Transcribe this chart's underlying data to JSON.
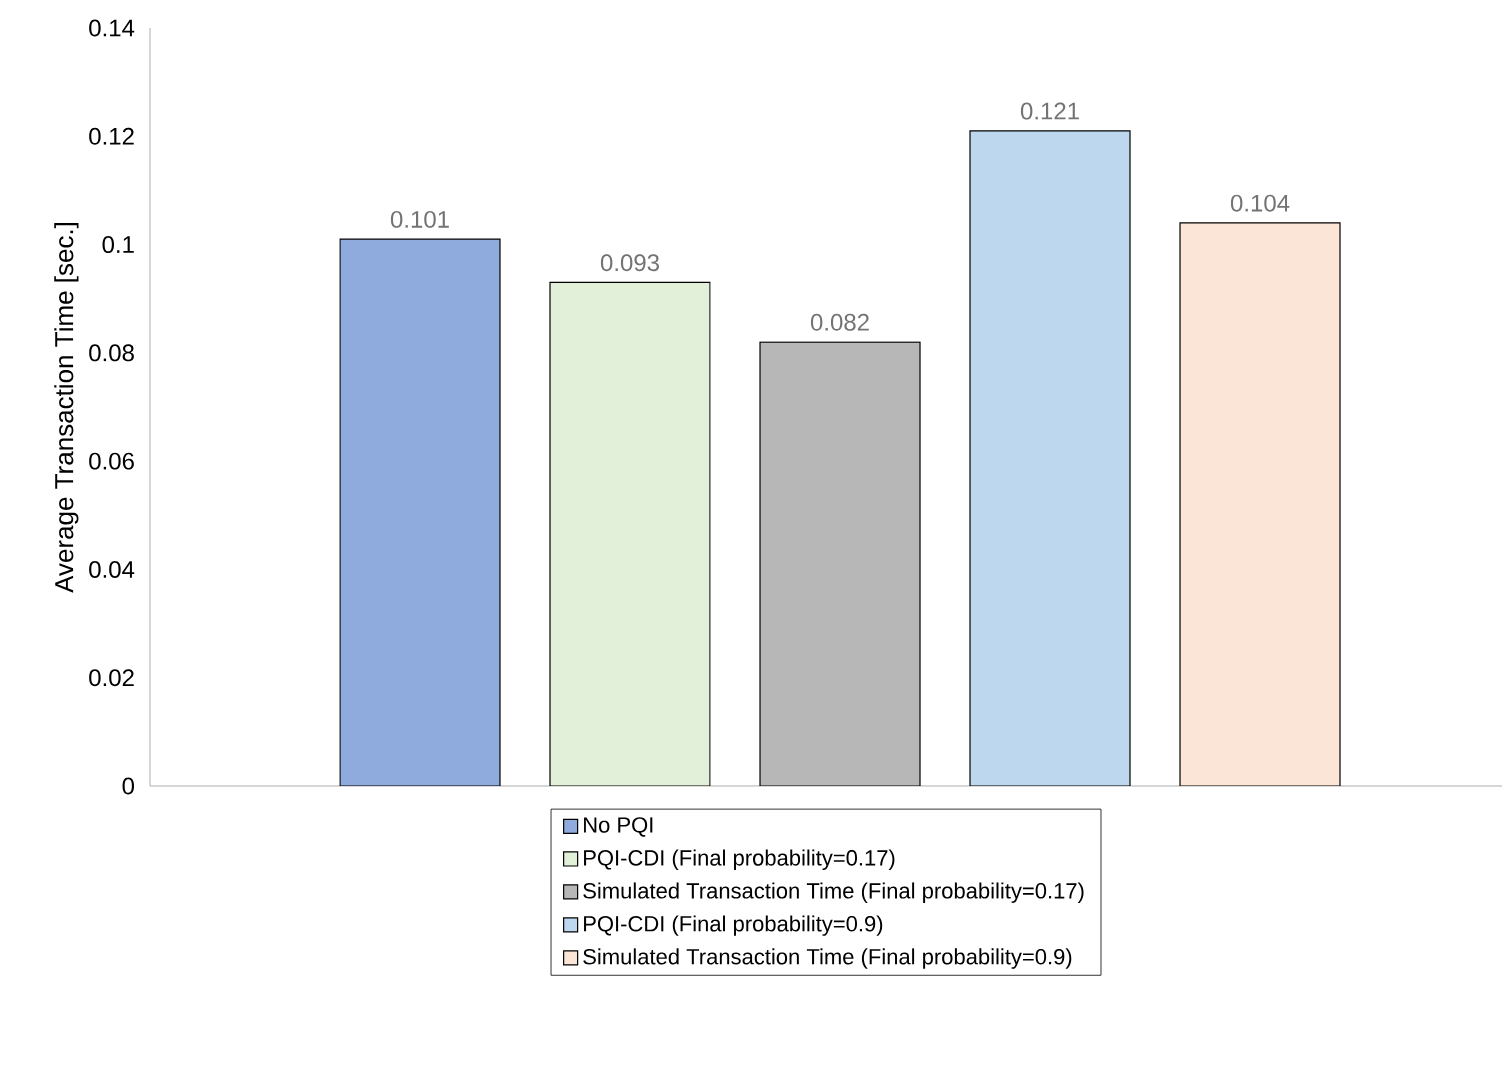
{
  "chart_data": {
    "type": "bar",
    "categories": [
      null
    ],
    "ylabel": "Average Transaction Time [sec.]",
    "ylim": [
      0,
      0.14
    ],
    "yticks": [
      0,
      0.02,
      0.04,
      0.06,
      0.08,
      0.1,
      0.12,
      0.14
    ],
    "data_labels": true,
    "legend": "bottom",
    "grid": false,
    "series": [
      {
        "name": "No PQI",
        "color": "#8faadc",
        "values": [
          0.101
        ]
      },
      {
        "name": "PQI-CDI (Final probability=0.17)",
        "color": "#e2f0d9",
        "values": [
          0.093
        ]
      },
      {
        "name": "Simulated Transaction Time (Final probability=0.17)",
        "color": "#b7b7b7",
        "values": [
          0.082
        ]
      },
      {
        "name": "PQI-CDI (Final probability=0.9)",
        "color": "#bdd7ee",
        "values": [
          0.121
        ]
      },
      {
        "name": "Simulated Transaction Time (Final probability=0.9)",
        "color": "#fbe5d6",
        "values": [
          0.104
        ]
      }
    ]
  }
}
